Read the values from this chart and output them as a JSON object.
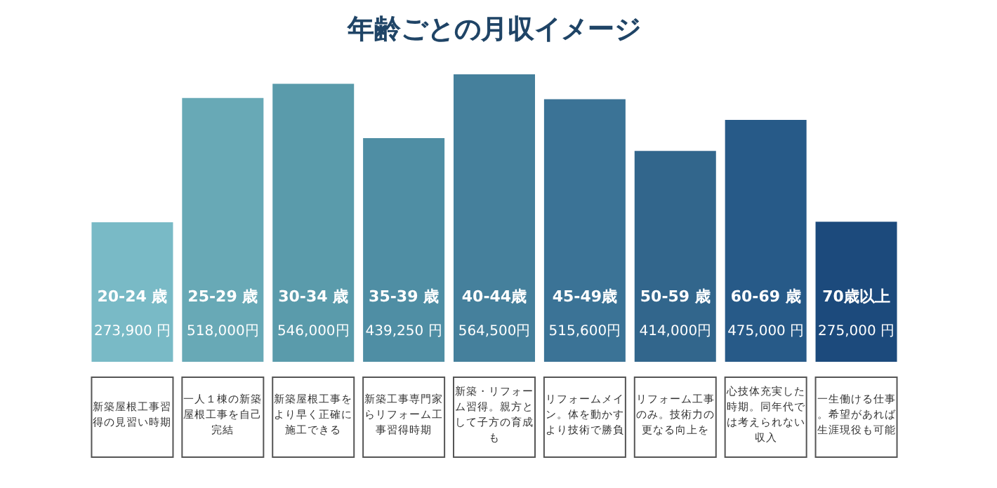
{
  "chart_data": {
    "type": "bar",
    "title": "年齢ごとの月収イメージ",
    "categories": [
      "20-24 歳",
      "25-29 歳",
      "30-34 歳",
      "35-39 歳",
      "40-44歳",
      "45-49歳",
      "50-59 歳",
      "60-69 歳",
      "70歳以上"
    ],
    "values": [
      273900,
      518000,
      546000,
      439250,
      564500,
      515600,
      414000,
      475000,
      275000
    ],
    "value_labels": [
      "273,900 円",
      "518,000円",
      "546,000円",
      "439,250 円",
      "564,500円",
      "515,600円",
      "414,000円",
      "475,000 円",
      "275,000 円"
    ],
    "colors": [
      "#79bac6",
      "#68a9b6",
      "#5a9bab",
      "#4f8ea4",
      "#45809c",
      "#3b7396",
      "#32668c",
      "#275a88",
      "#1c4a7c"
    ],
    "annotations": [
      "新築屋根工事習得の見習い時期",
      "一人１棟の新築屋根工事を自己完結",
      "新築屋根工事をより早く正確に施工できる",
      "新築工事専門家らリフォーム工事習得時期",
      "新築・リフォーム習得。親方として子方の育成も",
      "リフォームメイン。体を動かすより技術で勝負",
      "リフォーム工事のみ。技術力の更なる向上を",
      "心技体充実した時期。同年代では考えられない収入",
      "一生働ける仕事。希望があれば生涯現役も可能"
    ]
  }
}
